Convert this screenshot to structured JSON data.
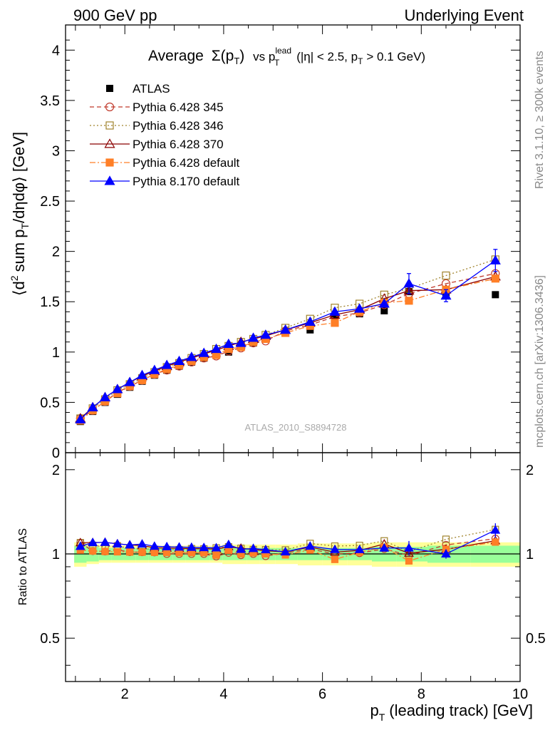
{
  "header": {
    "left": "900 GeV pp",
    "right": "Underlying Event"
  },
  "side_labels": {
    "rivet": "Rivet 3.1.10, ≥ 300k events",
    "mcplots": "mcplots.cern.ch [arXiv:1306.3436]"
  },
  "watermark": "ATLAS_2010_S8894728",
  "colors": {
    "ATLAS": "#000000",
    "p345": "#c0392b",
    "p346": "#a0832c",
    "p370": "#8b0000",
    "p6def": "#ff7f27",
    "p8": "#0000ff",
    "band_yellow": "#ffff99",
    "band_green": "#99ff99"
  },
  "chart_data": [
    {
      "type": "line",
      "title": "Average Σ(pT) vs pT lead (|η| < 2.5, pT > 0.1 GeV)",
      "title_parts": {
        "average": "Average",
        "sigma": "Σ(p",
        "sigma_sub": "T",
        "sigma_close": ")",
        "vs": "vs p",
        "lead_sup": "lead",
        "lead_sub": "T",
        "cuts": "(|η| < 2.5, p",
        "cuts_sub": "T",
        "cuts_end": "> 0.1 GeV)"
      },
      "ylabel": "⟨d² sum pT/dηdφ⟩ [GeV]",
      "ylabel_parts": {
        "open": "⟨d",
        "sup2": "2",
        "mid": "sum p",
        "sub": "T",
        "end": "/dηdφ⟩ [GeV]"
      },
      "xlim": [
        0.8,
        10.0
      ],
      "ylim": [
        0,
        4.25
      ],
      "x_ticks": [
        "2",
        "4",
        "6",
        "8",
        "10"
      ],
      "y_ticks": [
        "0",
        "0.5",
        "1",
        "1.5",
        "2",
        "2.5",
        "3",
        "3.5",
        "4"
      ],
      "legend_placement": "top-left",
      "x": [
        1.1,
        1.35,
        1.6,
        1.85,
        2.1,
        2.35,
        2.6,
        2.85,
        3.1,
        3.35,
        3.6,
        3.85,
        4.1,
        4.35,
        4.6,
        4.85,
        5.25,
        5.75,
        6.25,
        6.75,
        7.25,
        7.75,
        8.5,
        9.5
      ],
      "series": [
        {
          "name": "ATLAS",
          "key": "ATLAS",
          "style": "data",
          "values": [
            0.31,
            0.41,
            0.5,
            0.58,
            0.65,
            0.71,
            0.77,
            0.82,
            0.86,
            0.9,
            0.94,
            0.98,
            1.0,
            1.05,
            1.09,
            1.13,
            1.2,
            1.22,
            1.35,
            1.38,
            1.41,
            1.6,
            1.56,
            1.57
          ]
        },
        {
          "name": "Pythia 6.428 345",
          "key": "p345",
          "style": "circle-dash",
          "values": [
            0.34,
            0.42,
            0.51,
            0.6,
            0.66,
            0.72,
            0.78,
            0.82,
            0.86,
            0.9,
            0.94,
            0.96,
            1.01,
            1.04,
            1.09,
            1.11,
            1.21,
            1.27,
            1.35,
            1.39,
            1.47,
            1.58,
            1.68,
            1.78
          ]
        },
        {
          "name": "Pythia 6.428 346",
          "key": "p346",
          "style": "square-dot",
          "values": [
            0.34,
            0.44,
            0.53,
            0.62,
            0.68,
            0.74,
            0.8,
            0.85,
            0.89,
            0.94,
            0.98,
            1.03,
            1.06,
            1.1,
            1.13,
            1.17,
            1.24,
            1.33,
            1.44,
            1.48,
            1.57,
            1.63,
            1.76,
            1.92
          ]
        },
        {
          "name": "Pythia 6.428 370",
          "key": "p370",
          "style": "triangle-open",
          "values": [
            0.34,
            0.45,
            0.55,
            0.63,
            0.7,
            0.76,
            0.81,
            0.86,
            0.9,
            0.94,
            0.98,
            1.02,
            1.06,
            1.1,
            1.13,
            1.16,
            1.22,
            1.29,
            1.37,
            1.42,
            1.53,
            1.61,
            1.62,
            1.75
          ]
        },
        {
          "name": "Pythia 6.428 default",
          "key": "p6def",
          "style": "square-dashdot",
          "values": [
            0.32,
            0.42,
            0.51,
            0.59,
            0.66,
            0.72,
            0.78,
            0.83,
            0.87,
            0.91,
            0.95,
            0.97,
            1.03,
            1.05,
            1.1,
            1.13,
            1.19,
            1.26,
            1.29,
            1.4,
            1.49,
            1.51,
            1.62,
            1.73
          ]
        },
        {
          "name": "Pythia 8.170 default",
          "key": "p8",
          "style": "triangle-filled",
          "values": [
            0.33,
            0.45,
            0.55,
            0.63,
            0.7,
            0.77,
            0.82,
            0.87,
            0.91,
            0.95,
            0.99,
            1.03,
            1.08,
            1.09,
            1.14,
            1.17,
            1.22,
            1.3,
            1.4,
            1.43,
            1.48,
            1.68,
            1.56,
            1.91
          ]
        }
      ]
    },
    {
      "type": "line",
      "title": "",
      "ylabel": "Ratio to ATLAS",
      "xlabel": "pT (leading track) [GeV]",
      "xlabel_parts": {
        "p": "p",
        "sub": "T",
        "rest": "(leading track) [GeV]"
      },
      "xlim": [
        0.8,
        10.0
      ],
      "ylim": [
        0.35,
        2.3
      ],
      "y_ticks": [
        "0.5",
        "1",
        "2"
      ],
      "bands": {
        "green_half_width": [
          0.07,
          0.06,
          0.05,
          0.05,
          0.05,
          0.05,
          0.05,
          0.05,
          0.05,
          0.05,
          0.05,
          0.05,
          0.05,
          0.05,
          0.05,
          0.05,
          0.05,
          0.05,
          0.05,
          0.05,
          0.06,
          0.06,
          0.07,
          0.07
        ],
        "yellow_half_width": [
          0.1,
          0.08,
          0.07,
          0.07,
          0.07,
          0.07,
          0.07,
          0.07,
          0.07,
          0.07,
          0.07,
          0.07,
          0.08,
          0.08,
          0.08,
          0.08,
          0.08,
          0.09,
          0.09,
          0.09,
          0.1,
          0.1,
          0.1,
          0.1
        ]
      }
    }
  ]
}
